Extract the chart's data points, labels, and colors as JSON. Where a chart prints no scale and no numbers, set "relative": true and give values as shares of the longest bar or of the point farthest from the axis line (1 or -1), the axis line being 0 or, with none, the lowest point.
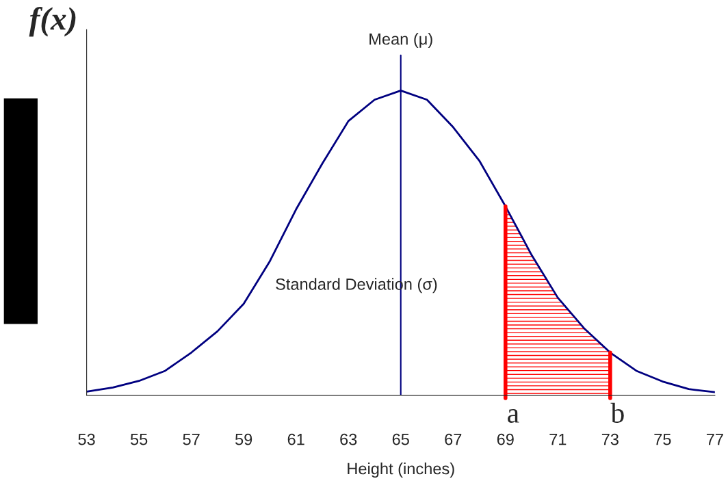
{
  "chart_data": {
    "type": "line",
    "relative": true,
    "xlabel": "Height (inches)",
    "ylabel": "f(x)",
    "x": [
      53,
      54,
      55,
      56,
      57,
      58,
      59,
      60,
      61,
      62,
      63,
      64,
      65,
      66,
      67,
      68,
      69,
      70,
      71,
      72,
      73,
      74,
      75,
      76,
      77
    ],
    "series": [
      {
        "color": "#000080",
        "values": [
          0.012,
          0.025,
          0.047,
          0.08,
          0.14,
          0.21,
          0.3,
          0.44,
          0.61,
          0.76,
          0.9,
          0.97,
          1.0,
          0.97,
          0.88,
          0.77,
          0.62,
          0.46,
          0.32,
          0.22,
          0.14,
          0.08,
          0.045,
          0.02,
          0.01
        ]
      },
      {
        "type": "area",
        "color": "#ff0000",
        "x": [
          69,
          70,
          71,
          72,
          73
        ],
        "values": [
          0.62,
          0.46,
          0.32,
          0.22,
          0.14
        ]
      }
    ],
    "xlim": [
      53,
      77
    ],
    "xticks": [
      53,
      55,
      57,
      59,
      61,
      63,
      65,
      67,
      69,
      71,
      73,
      75,
      77
    ],
    "ref_lines": [
      {
        "axis": "x",
        "value": 65,
        "label": "Mean (μ)",
        "color": "#000080"
      }
    ],
    "annotations": [
      "Standard Deviation (σ)",
      "a",
      "b"
    ],
    "grid": false,
    "legend": false,
    "marker": "none",
    "line_style": "solid"
  }
}
